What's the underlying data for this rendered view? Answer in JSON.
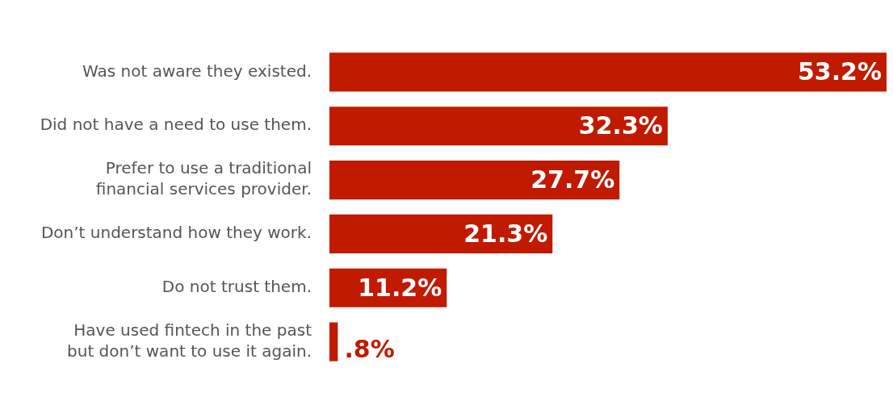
{
  "chart_data": {
    "type": "bar",
    "orientation": "horizontal",
    "categories": [
      "Was not aware they existed.",
      "Did not have a need to use them.",
      "Prefer to use a traditional\nfinancial services provider.",
      "Don’t understand how they work.",
      "Do not trust them.",
      "Have used fintech in the past\nbut don’t want to use it again."
    ],
    "values": [
      53.2,
      32.3,
      27.7,
      21.3,
      11.2,
      0.8
    ],
    "value_labels": [
      "53.2%",
      "32.3%",
      "27.7%",
      "21.3%",
      "11.2%",
      ".8%"
    ],
    "color": "#c01a00",
    "grid": false,
    "legend": false
  }
}
